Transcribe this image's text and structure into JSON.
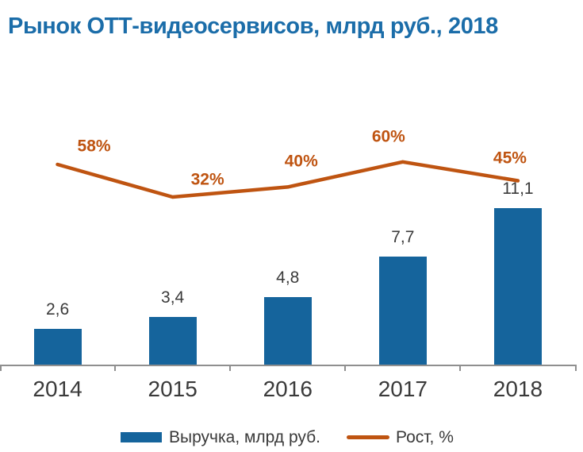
{
  "title": "Рынок ОТТ-видеосервисов, млрд руб., 2018",
  "colors": {
    "title": "#1B6DA9",
    "bar": "#15649C",
    "line": "#BF5411",
    "value_label": "#3A3A3A",
    "axis": "#8F8F8F"
  },
  "chart_data": {
    "type": "combo-bar-line",
    "title": "Рынок ОТТ-видеосервисов, млрд руб., 2018",
    "categories": [
      "2014",
      "2015",
      "2016",
      "2017",
      "2018"
    ],
    "series": [
      {
        "name": "Выручка, млрд руб.",
        "type": "bar",
        "axis": "primary",
        "values": [
          2.6,
          3.4,
          4.8,
          7.7,
          11.1
        ],
        "labels": [
          "2,6",
          "3,4",
          "4,8",
          "7,7",
          "11,1"
        ],
        "color": "#15649C"
      },
      {
        "name": "Рост, %",
        "type": "line",
        "axis": "secondary",
        "values": [
          58,
          32,
          40,
          60,
          45
        ],
        "labels": [
          "58%",
          "32%",
          "40%",
          "60%",
          "45%"
        ],
        "color": "#BF5411"
      }
    ],
    "xlabel": "",
    "ylabel": "",
    "grid": false,
    "legend_position": "bottom",
    "value_decimal_separator": ","
  }
}
